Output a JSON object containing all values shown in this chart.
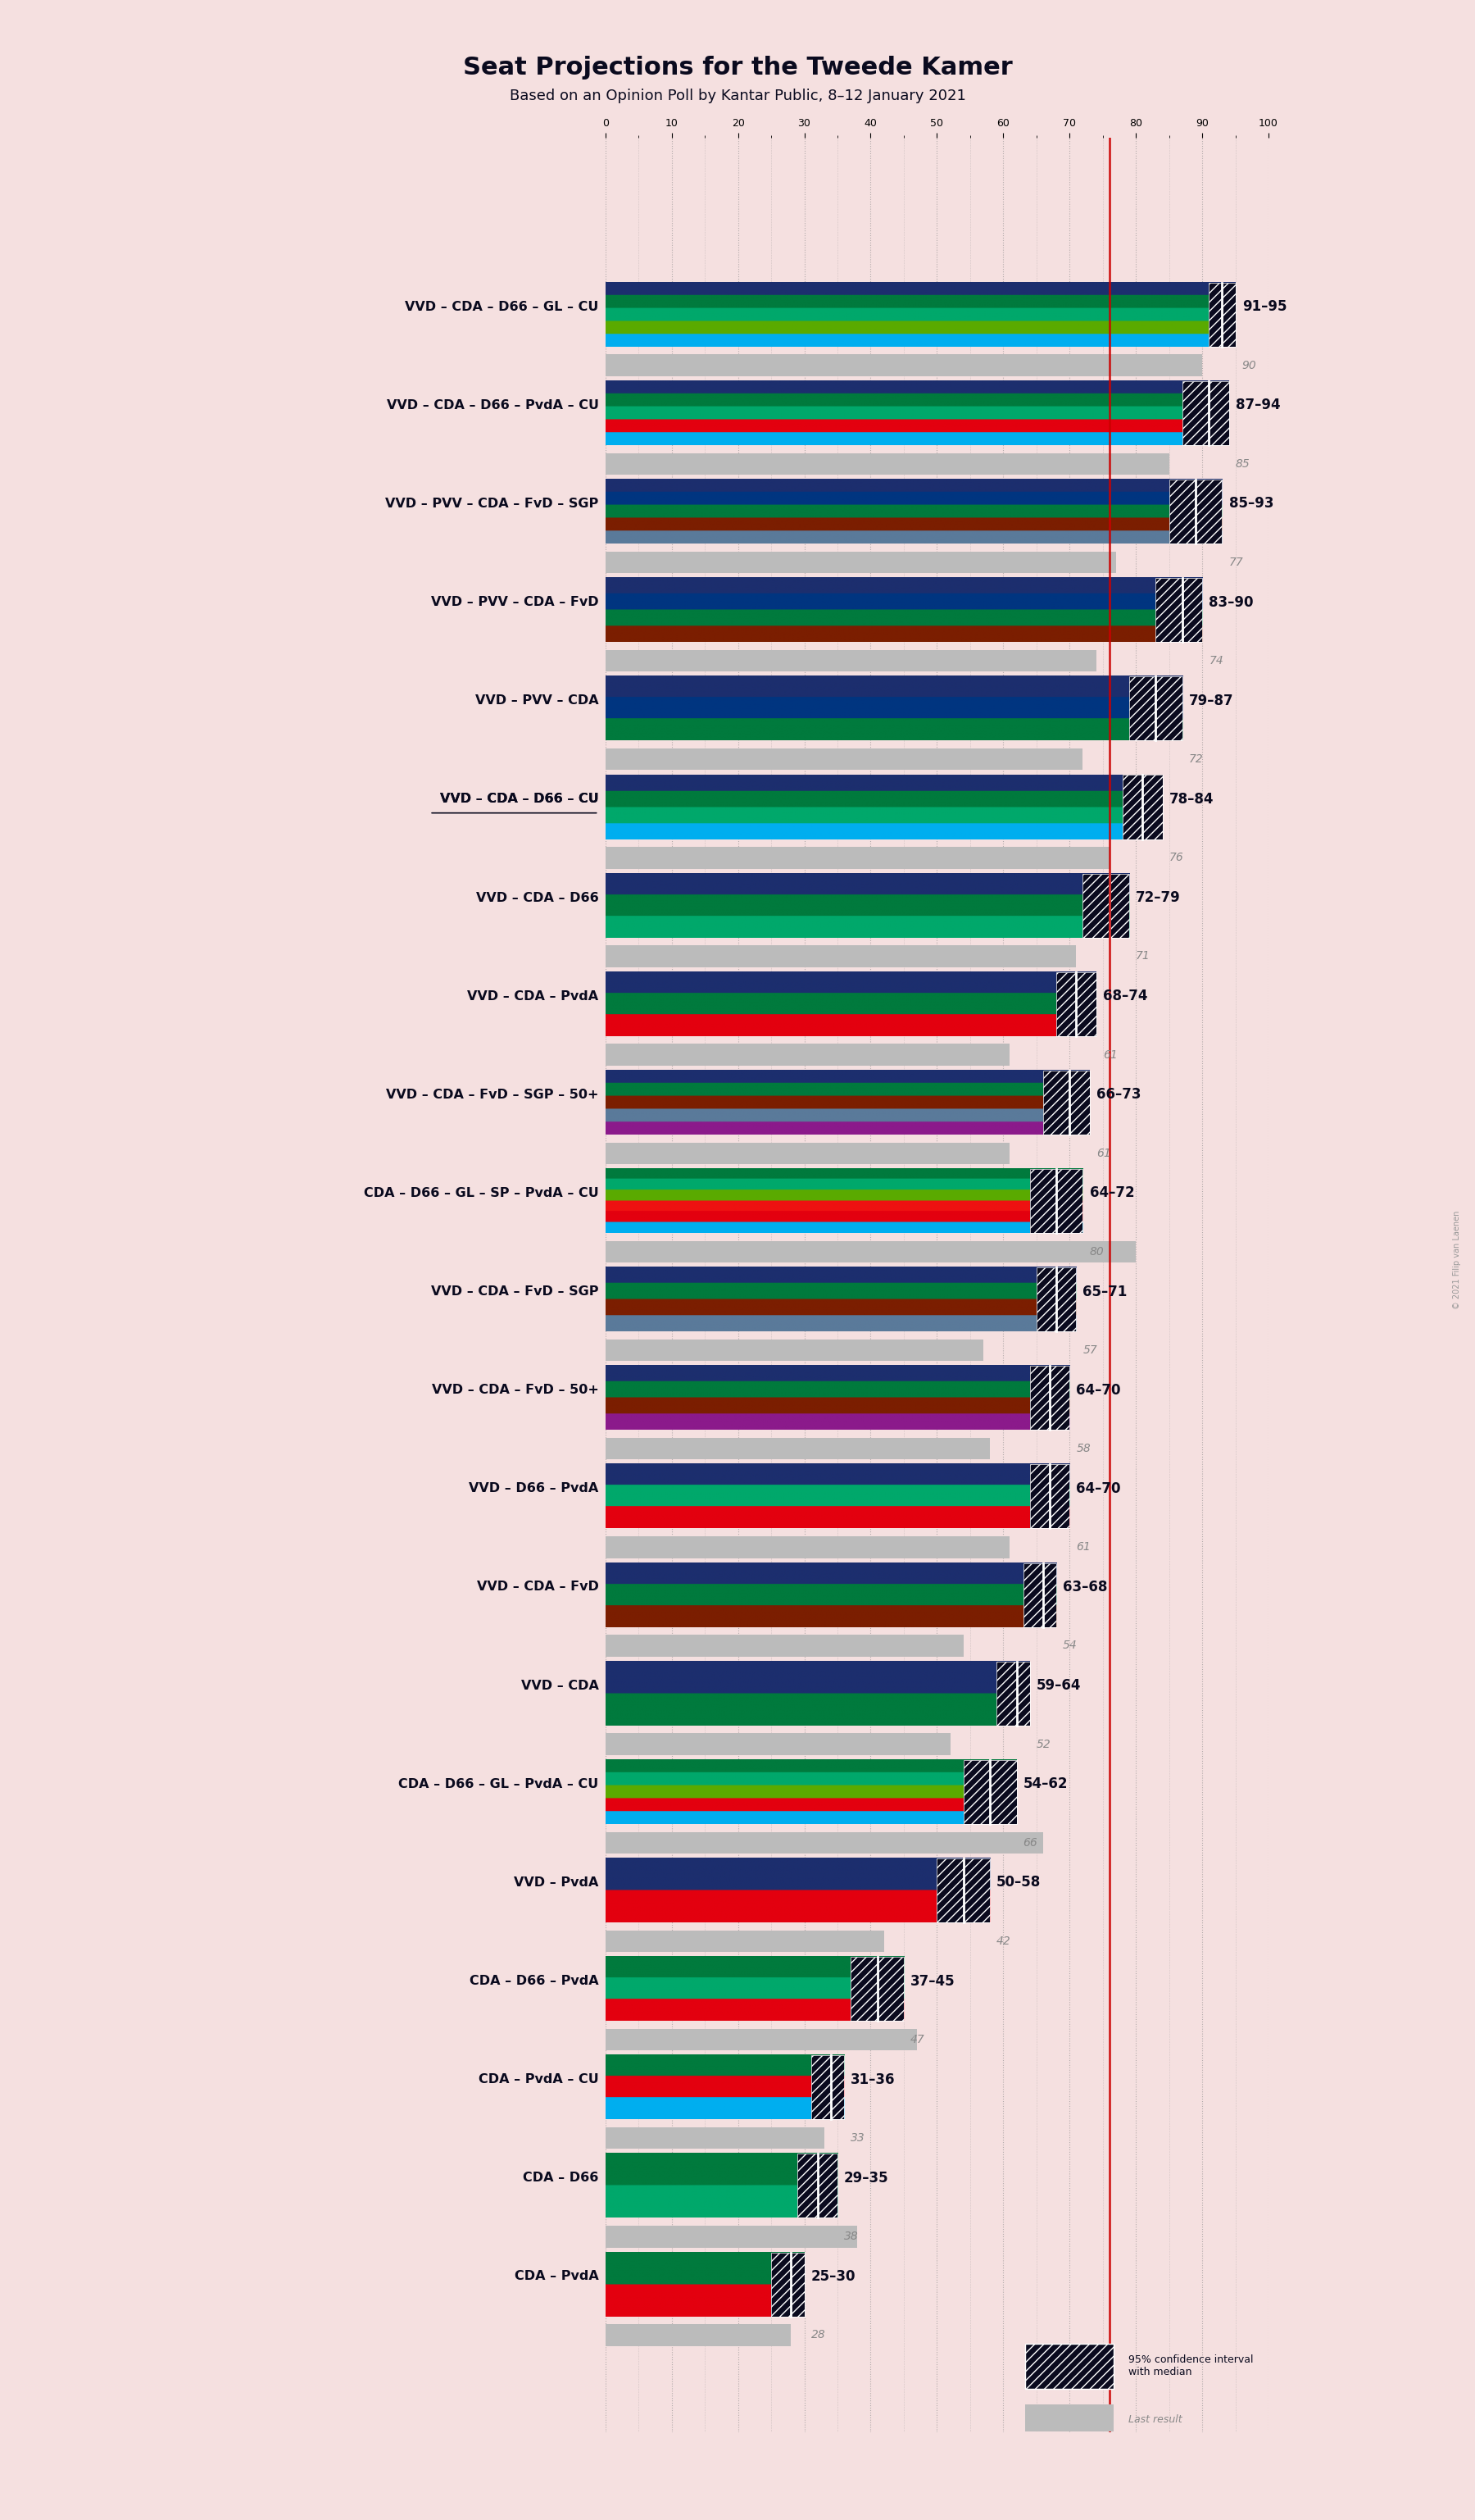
{
  "title": "Seat Projections for the Tweede Kamer",
  "subtitle": "Based on an Opinion Poll by Kantar Public, 8–12 January 2021",
  "background_color": "#f5e0e0",
  "coalitions": [
    "VVD – CDA – D66 – GL – CU",
    "VVD – CDA – D66 – PvdA – CU",
    "VVD – PVV – CDA – FvD – SGP",
    "VVD – PVV – CDA – FvD",
    "VVD – PVV – CDA",
    "VVD – CDA – D66 – CU",
    "VVD – CDA – D66",
    "VVD – CDA – PvdA",
    "VVD – CDA – FvD – SGP – 50+",
    "CDA – D66 – GL – SP – PvdA – CU",
    "VVD – CDA – FvD – SGP",
    "VVD – CDA – FvD – 50+",
    "VVD – D66 – PvdA",
    "VVD – CDA – FvD",
    "VVD – CDA",
    "CDA – D66 – GL – PvdA – CU",
    "VVD – PvdA",
    "CDA – D66 – PvdA",
    "CDA – PvdA – CU",
    "CDA – D66",
    "CDA – PvdA"
  ],
  "underlined_idx": [
    5
  ],
  "ci_low": [
    91,
    87,
    85,
    83,
    79,
    78,
    72,
    68,
    66,
    64,
    65,
    64,
    64,
    63,
    59,
    54,
    50,
    37,
    31,
    29,
    25
  ],
  "ci_high": [
    95,
    94,
    93,
    90,
    87,
    84,
    79,
    74,
    73,
    72,
    71,
    70,
    70,
    68,
    64,
    62,
    58,
    45,
    36,
    35,
    30
  ],
  "median": [
    93,
    91,
    89,
    87,
    83,
    81,
    76,
    71,
    70,
    68,
    68,
    67,
    67,
    66,
    62,
    58,
    54,
    41,
    34,
    32,
    28
  ],
  "last_result": [
    90,
    85,
    77,
    74,
    72,
    76,
    71,
    61,
    61,
    80,
    57,
    58,
    61,
    54,
    52,
    66,
    42,
    47,
    33,
    38,
    28
  ],
  "majority_line": 76,
  "x_max": 100,
  "party_colors": {
    "VVD": "#1c2e6e",
    "CDA": "#007a3d",
    "D66": "#00a86b",
    "GL": "#5aaa00",
    "CU": "#00aeef",
    "PvdA": "#e3000f",
    "PVV": "#003580",
    "FvD": "#7b1e00",
    "SGP": "#5a7a9a",
    "SP": "#ee1111",
    "50+": "#8b1a8b"
  },
  "coalition_parties": [
    [
      "VVD",
      "CDA",
      "D66",
      "GL",
      "CU"
    ],
    [
      "VVD",
      "CDA",
      "D66",
      "PvdA",
      "CU"
    ],
    [
      "VVD",
      "PVV",
      "CDA",
      "FvD",
      "SGP"
    ],
    [
      "VVD",
      "PVV",
      "CDA",
      "FvD"
    ],
    [
      "VVD",
      "PVV",
      "CDA"
    ],
    [
      "VVD",
      "CDA",
      "D66",
      "CU"
    ],
    [
      "VVD",
      "CDA",
      "D66"
    ],
    [
      "VVD",
      "CDA",
      "PvdA"
    ],
    [
      "VVD",
      "CDA",
      "FvD",
      "SGP",
      "50+"
    ],
    [
      "CDA",
      "D66",
      "GL",
      "SP",
      "PvdA",
      "CU"
    ],
    [
      "VVD",
      "CDA",
      "FvD",
      "SGP"
    ],
    [
      "VVD",
      "CDA",
      "FvD",
      "50+"
    ],
    [
      "VVD",
      "D66",
      "PvdA"
    ],
    [
      "VVD",
      "CDA",
      "FvD"
    ],
    [
      "VVD",
      "CDA"
    ],
    [
      "CDA",
      "D66",
      "GL",
      "PvdA",
      "CU"
    ],
    [
      "VVD",
      "PvdA"
    ],
    [
      "CDA",
      "D66",
      "PvdA"
    ],
    [
      "CDA",
      "PvdA",
      "CU"
    ],
    [
      "CDA",
      "D66"
    ],
    [
      "CDA",
      "PvdA"
    ]
  ],
  "ci_box_color": "#0a0a1e",
  "grid_color": "#888888",
  "majority_line_color": "#cc0000",
  "copyright_text": "© 2021 Filip van Laenen"
}
